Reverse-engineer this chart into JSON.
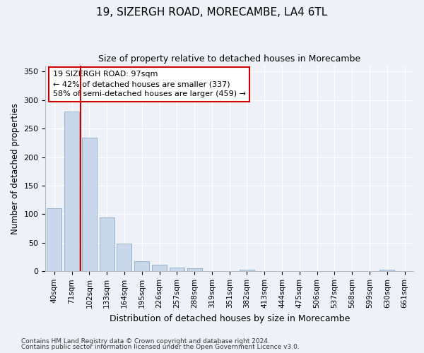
{
  "title": "19, SIZERGH ROAD, MORECAMBE, LA4 6TL",
  "subtitle": "Size of property relative to detached houses in Morecambe",
  "xlabel": "Distribution of detached houses by size in Morecambe",
  "ylabel": "Number of detached properties",
  "categories": [
    "40sqm",
    "71sqm",
    "102sqm",
    "133sqm",
    "164sqm",
    "195sqm",
    "226sqm",
    "257sqm",
    "288sqm",
    "319sqm",
    "351sqm",
    "382sqm",
    "413sqm",
    "444sqm",
    "475sqm",
    "506sqm",
    "537sqm",
    "568sqm",
    "599sqm",
    "630sqm",
    "661sqm"
  ],
  "values": [
    110,
    280,
    234,
    94,
    48,
    18,
    11,
    6,
    5,
    0,
    0,
    3,
    0,
    0,
    0,
    0,
    0,
    0,
    0,
    3,
    0
  ],
  "bar_color": "#c8d8ea",
  "bar_edge_color": "#8aaac8",
  "marker_line_color": "#cc0000",
  "annotation_box_color": "#ffffff",
  "annotation_box_edge": "#cc0000",
  "marker_label": "19 SIZERGH ROAD: 97sqm",
  "annotation_line1": "← 42% of detached houses are smaller (337)",
  "annotation_line2": "58% of semi-detached houses are larger (459) →",
  "ylim": [
    0,
    360
  ],
  "yticks": [
    0,
    50,
    100,
    150,
    200,
    250,
    300,
    350
  ],
  "footer1": "Contains HM Land Registry data © Crown copyright and database right 2024.",
  "footer2": "Contains public sector information licensed under the Open Government Licence v3.0.",
  "bg_color": "#eef2f8",
  "plot_bg_color": "#eef2f8"
}
